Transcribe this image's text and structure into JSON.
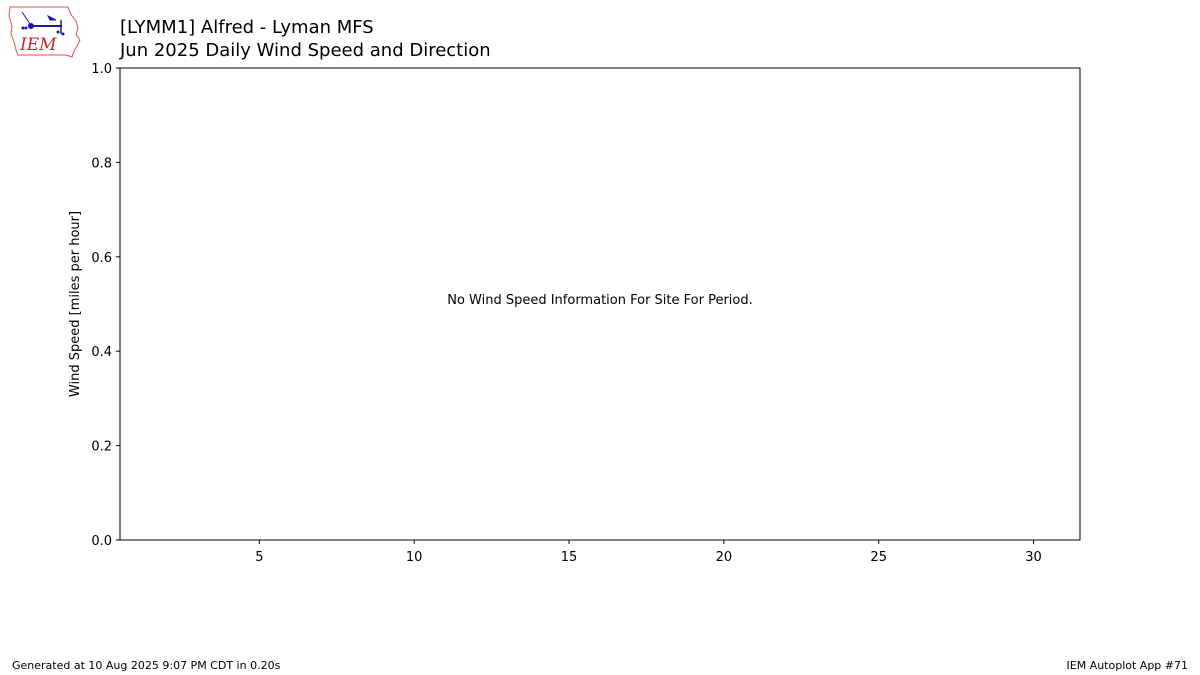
{
  "header": {
    "title_line1": "[LYMM1] Alfred - Lyman MFS",
    "title_line2": "Jun 2025 Daily Wind Speed and Direction"
  },
  "logo": {
    "text": "IEM",
    "icon": "iem-iowa-logo",
    "outline_color": "#d9534f",
    "text_color": "#cc2222",
    "icon_color": "#1a1aaa"
  },
  "chart_data": {
    "type": "bar",
    "title": "[LYMM1] Alfred - Lyman MFS\nJun 2025 Daily Wind Speed and Direction",
    "xlabel": "",
    "ylabel": "Wind Speed [miles per hour]",
    "xlim": [
      0.5,
      31.5
    ],
    "ylim": [
      0,
      1
    ],
    "xticks": [
      5,
      10,
      15,
      20,
      25,
      30
    ],
    "yticks": [
      0.0,
      0.2,
      0.4,
      0.6,
      0.8,
      1.0
    ],
    "ytick_labels": [
      "0.0",
      "0.2",
      "0.4",
      "0.6",
      "0.8",
      "1.0"
    ],
    "series": [],
    "annotation": "No Wind Speed Information For Site For Period.",
    "grid": false
  },
  "footer": {
    "generated": "Generated at 10 Aug 2025 9:07 PM CDT in 0.20s",
    "app": "IEM Autoplot App #71"
  }
}
